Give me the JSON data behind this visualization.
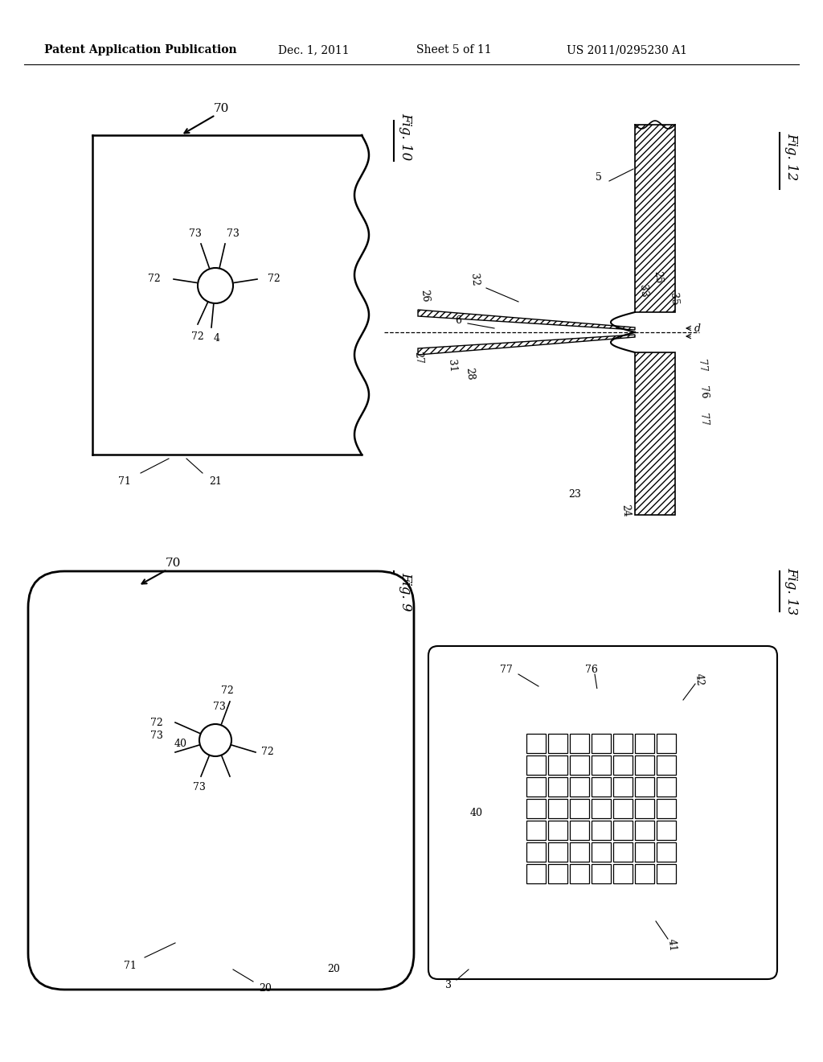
{
  "bg_color": "#ffffff",
  "header_text": "Patent Application Publication",
  "header_date": "Dec. 1, 2011",
  "header_sheet": "Sheet 5 of 11",
  "header_patent": "US 2011/0295230 A1",
  "fig10_label": "Fig. 10",
  "fig9_label": "Fig. 9",
  "fig12_label": "Fig. 12",
  "fig13_label": "Fig. 13"
}
